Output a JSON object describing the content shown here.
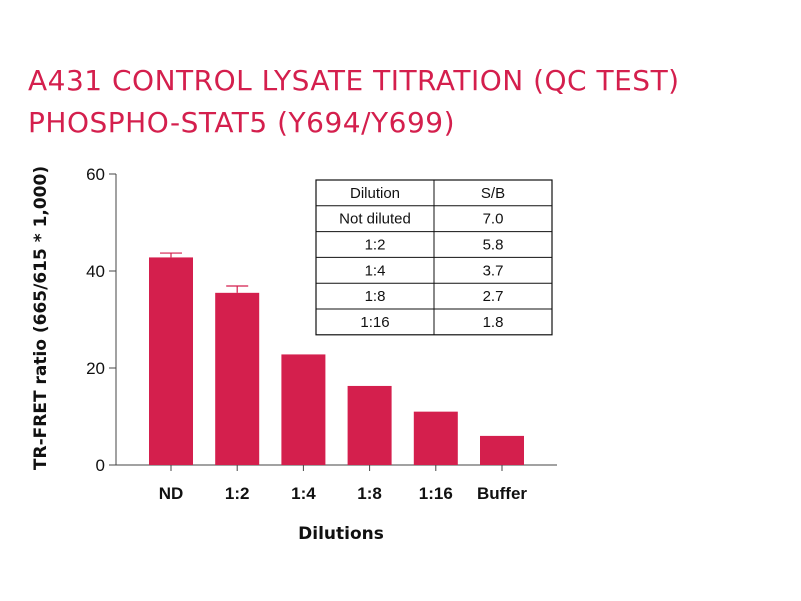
{
  "title": {
    "line1": "A431 CONTROL LYSATE TITRATION (QC TEST)",
    "line2": "PHOSPHO-STAT5 (Y694/Y699)"
  },
  "colors": {
    "title": "#d41f4d",
    "bar": "#d41f4d",
    "axis": "#444444"
  },
  "chart_data": {
    "type": "bar",
    "categories": [
      "ND",
      "1:2",
      "1:4",
      "1:8",
      "1:16",
      "Buffer"
    ],
    "values": [
      42.8,
      35.5,
      22.8,
      16.3,
      11.0,
      6.0
    ],
    "error_bars": [
      0.9,
      1.4,
      0,
      0,
      0,
      0
    ],
    "xlabel": "Dilutions",
    "ylabel": "TR-FRET ratio (665/615 * 1,000)",
    "ylim": [
      0,
      60
    ],
    "yticks": [
      0,
      20,
      40,
      60
    ],
    "grid": false,
    "legend": "none",
    "inset_table": {
      "placement": "top-right",
      "headers": [
        "Dilution",
        "S/B"
      ],
      "rows": [
        [
          "Not diluted",
          "7.0"
        ],
        [
          "1:2",
          "5.8"
        ],
        [
          "1:4",
          "3.7"
        ],
        [
          "1:8",
          "2.7"
        ],
        [
          "1:16",
          "1.8"
        ]
      ]
    }
  }
}
